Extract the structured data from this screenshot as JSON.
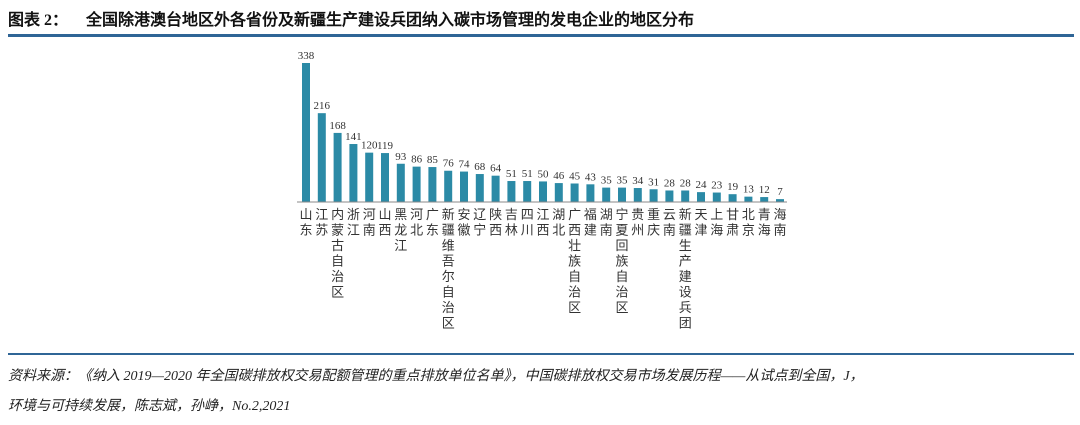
{
  "header": {
    "figure_label": "图表 2：",
    "title": "全国除港澳台地区外各省份及新疆生产建设兵团纳入碳市场管理的发电企业的地区分布"
  },
  "footer": {
    "source_line1": "资料来源：《纳入 2019—2020 年全国碳排放权交易配额管理的重点排放单位名单》，中国碳排放权交易市场发展历程——从试点到全国，J，",
    "source_line2": "环境与可持续发展，陈志斌，孙峥，No.2,2021"
  },
  "colors": {
    "bar": "#2b8aa6",
    "rule": "#2f6596"
  },
  "chart_data": {
    "type": "bar",
    "title": "",
    "xlabel": "",
    "ylabel": "",
    "ylim": [
      0,
      338
    ],
    "grid": false,
    "data_labels": true,
    "categories": [
      "山东",
      "江苏",
      "内蒙古自治区",
      "浙江",
      "河南",
      "山西",
      "黑龙江",
      "河北",
      "广东",
      "新疆维吾尔自治区",
      "安徽",
      "辽宁",
      "陕西",
      "吉林",
      "四川",
      "江西",
      "湖北",
      "广西壮族自治区",
      "福建",
      "湖南",
      "宁夏回族自治区",
      "贵州",
      "重庆",
      "云南",
      "新疆生产建设兵团",
      "天津",
      "上海",
      "甘肃",
      "北京",
      "青海",
      "海南"
    ],
    "values": [
      338,
      216,
      168,
      141,
      120,
      119,
      93,
      86,
      85,
      76,
      74,
      68,
      64,
      51,
      51,
      50,
      46,
      45,
      43,
      35,
      35,
      34,
      31,
      28,
      28,
      24,
      23,
      19,
      13,
      12,
      7
    ]
  }
}
